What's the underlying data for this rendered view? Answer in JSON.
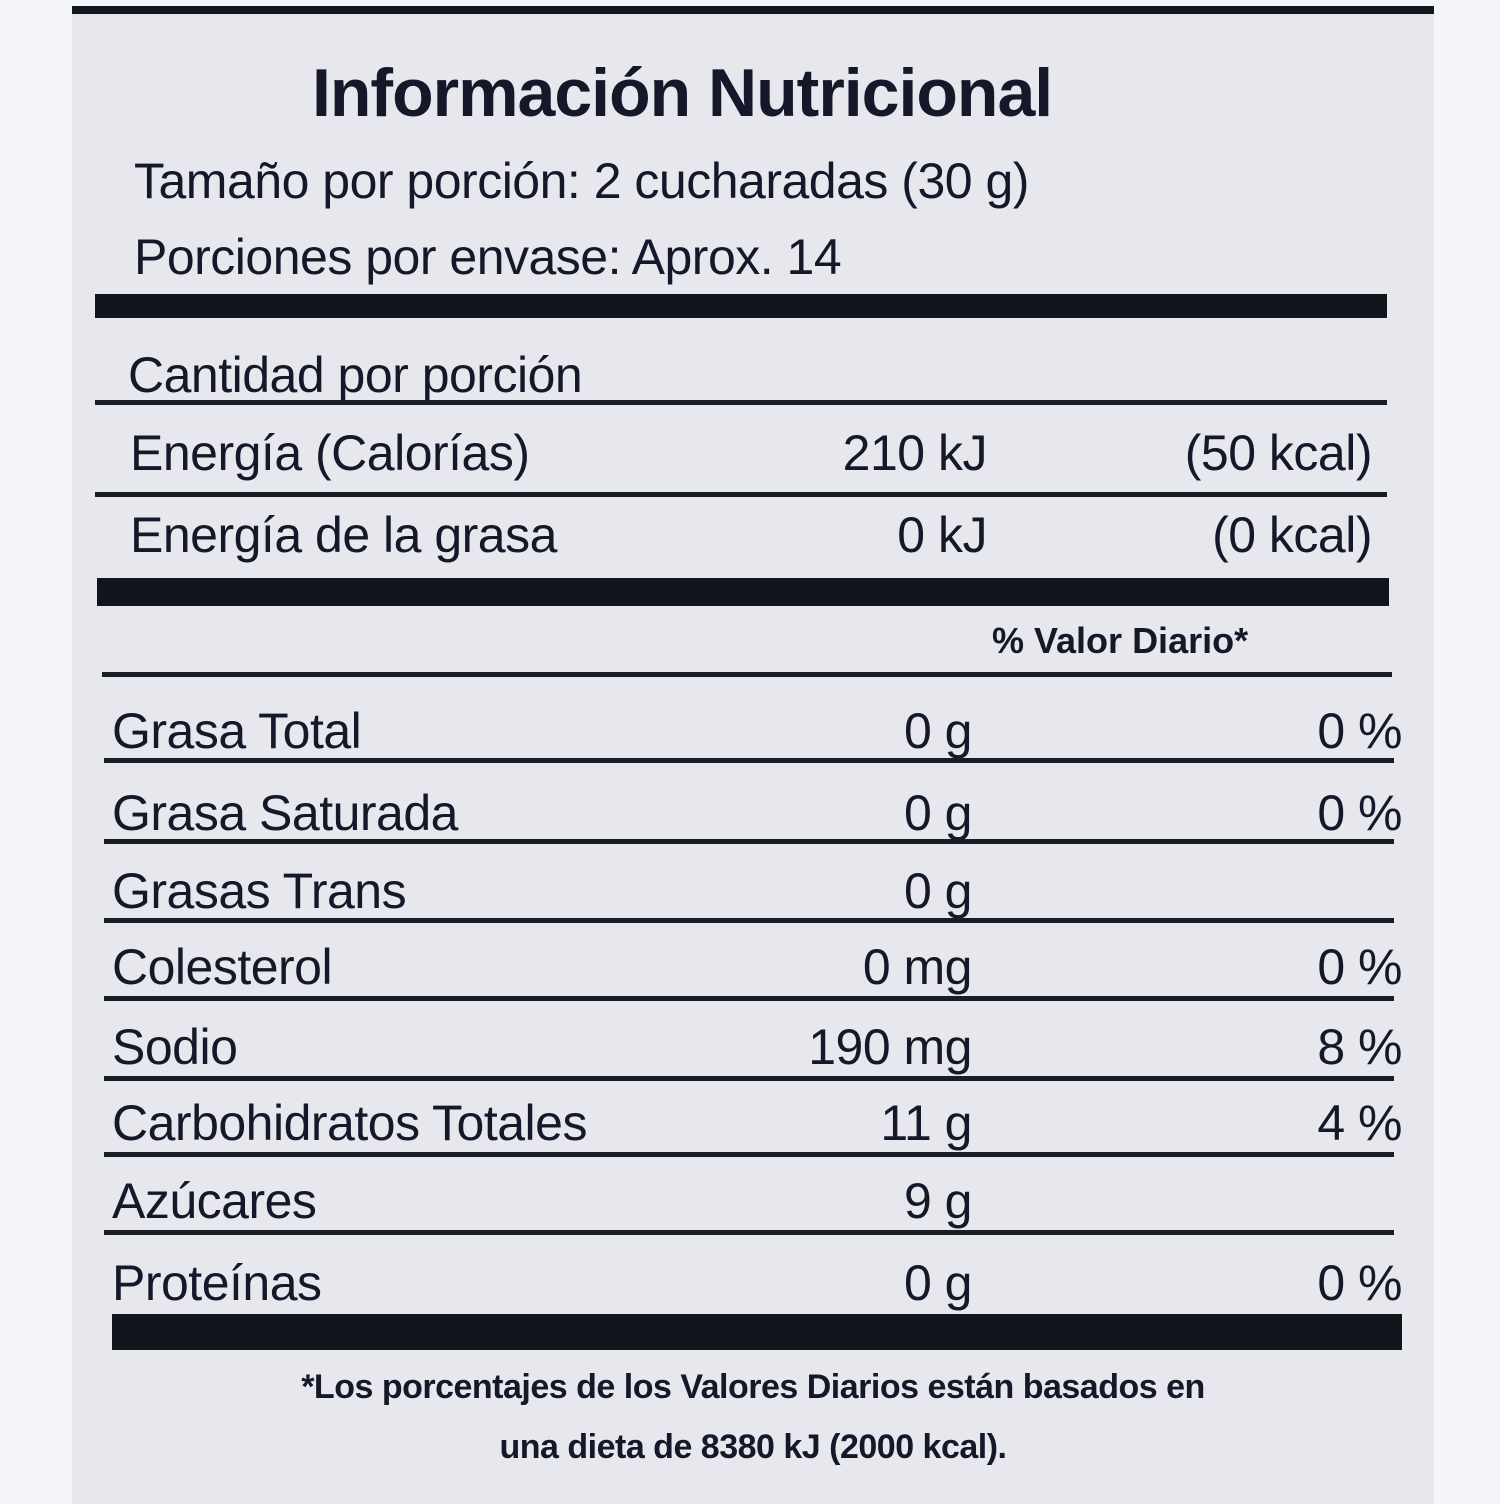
{
  "title": "Información Nutricional",
  "serving_size": "Tamaño por porción: 2 cucharadas (30 g)",
  "servings_per_container": "Porciones por envase: Aprox. 14",
  "amount_per_serving": "Cantidad por porción",
  "energy": [
    {
      "name": "Energía (Calorías)",
      "kj": "210 kJ",
      "kcal": "(50 kcal)"
    },
    {
      "name": "Energía de la grasa",
      "kj": "0 kJ",
      "kcal": "(0 kcal)"
    }
  ],
  "daily_value_header": "% Valor Diario*",
  "nutrients": [
    {
      "name": "Grasa Total",
      "amount": "0 g",
      "dv": "0 %"
    },
    {
      "name": "Grasa Saturada",
      "amount": "0 g",
      "dv": "0 %"
    },
    {
      "name": "Grasas Trans",
      "amount": "0 g",
      "dv": ""
    },
    {
      "name": "Colesterol",
      "amount": "0 mg",
      "dv": "0 %"
    },
    {
      "name": "Sodio",
      "amount": "190 mg",
      "dv": "8 %"
    },
    {
      "name": "Carbohidratos Totales",
      "amount": "11 g",
      "dv": "4 %"
    },
    {
      "name": "Azúcares",
      "amount": "9 g",
      "dv": ""
    },
    {
      "name": "Proteínas",
      "amount": "0 g",
      "dv": "0 %"
    }
  ],
  "footnote_line1": "*Los porcentajes de los Valores Diarios están basados en",
  "footnote_line2": "una dieta de 8380 kJ (2000 kcal)."
}
